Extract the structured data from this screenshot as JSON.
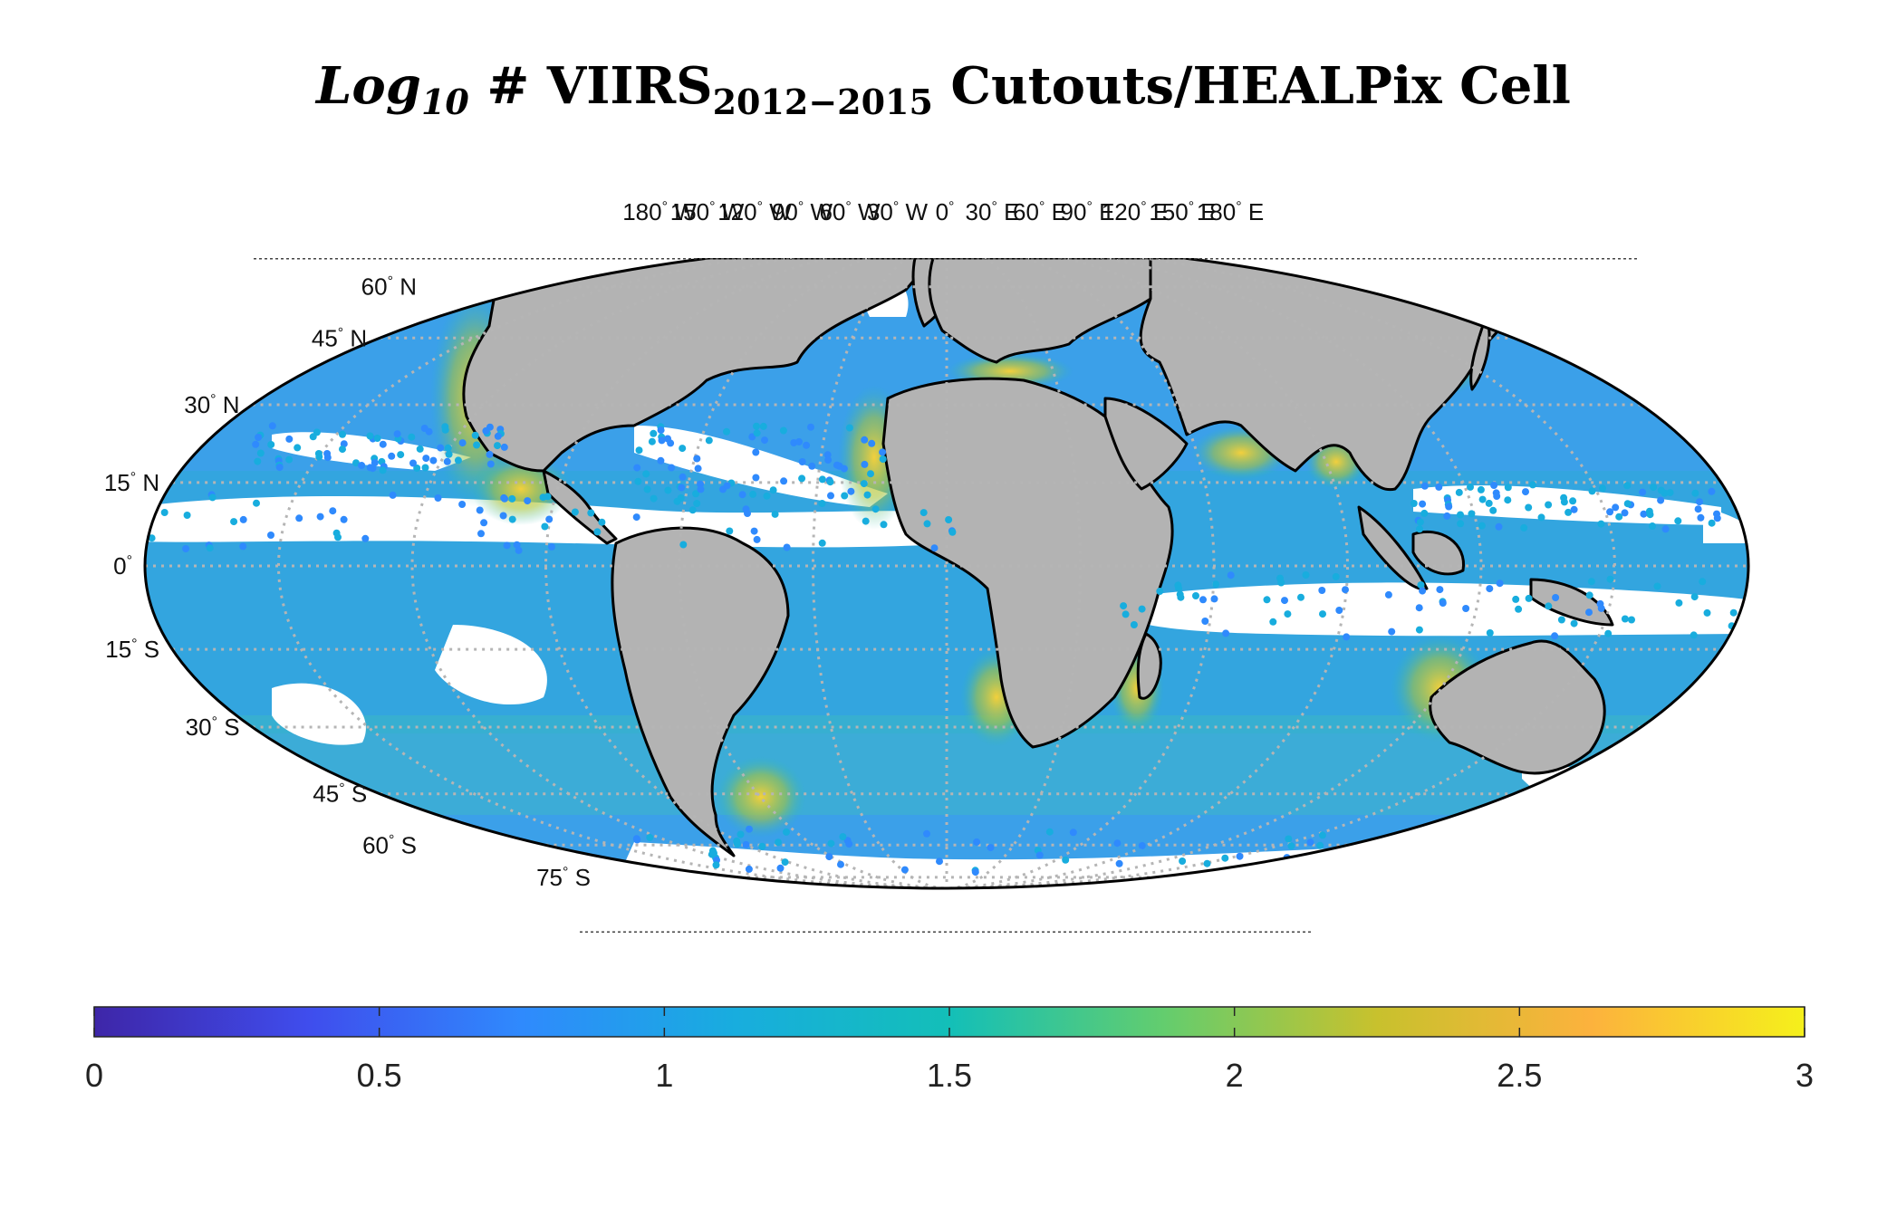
{
  "title": {
    "base": "Log",
    "log_sub": "10",
    "middle": " # VIIRS",
    "year_sub": "2012−2015",
    "suffix": " Cutouts/HEALPix Cell"
  },
  "map": {
    "projection": "Mollweide (ellipse)",
    "graticule": "dotted gray",
    "land_color": "#b3b3b3",
    "coastline_color": "#000000",
    "no_data_color": "#ffffff",
    "lon_labels": [
      {
        "v": -180,
        "text": "180",
        "suf": "W"
      },
      {
        "v": -150,
        "text": "150",
        "suf": "W"
      },
      {
        "v": -120,
        "text": "120",
        "suf": "W"
      },
      {
        "v": -90,
        "text": "90",
        "suf": "W"
      },
      {
        "v": -60,
        "text": "60",
        "suf": "W"
      },
      {
        "v": -30,
        "text": "30",
        "suf": "W"
      },
      {
        "v": 0,
        "text": "0",
        "suf": ""
      },
      {
        "v": 30,
        "text": "30",
        "suf": "E"
      },
      {
        "v": 60,
        "text": "60",
        "suf": "E"
      },
      {
        "v": 90,
        "text": "90",
        "suf": "E"
      },
      {
        "v": 120,
        "text": "120",
        "suf": "E"
      },
      {
        "v": 150,
        "text": "150",
        "suf": "E"
      },
      {
        "v": 180,
        "text": "180",
        "suf": "E"
      }
    ],
    "lat_labels": [
      {
        "v": 60,
        "text": "60",
        "suf": "N"
      },
      {
        "v": 45,
        "text": "45",
        "suf": "N"
      },
      {
        "v": 30,
        "text": "30",
        "suf": "N"
      },
      {
        "v": 15,
        "text": "15",
        "suf": "N"
      },
      {
        "v": 0,
        "text": "0",
        "suf": ""
      },
      {
        "v": -15,
        "text": "15",
        "suf": "S"
      },
      {
        "v": -30,
        "text": "30",
        "suf": "S"
      },
      {
        "v": -45,
        "text": "45",
        "suf": "S"
      },
      {
        "v": -60,
        "text": "60",
        "suf": "S"
      },
      {
        "v": -75,
        "text": "75",
        "suf": "S"
      }
    ],
    "degree_symbol": "°"
  },
  "colorbar": {
    "min": 0,
    "max": 3,
    "ticks": [
      "0",
      "0.5",
      "1",
      "1.5",
      "2",
      "2.5",
      "3"
    ],
    "colors": [
      "#3e26a8",
      "#3f4ded",
      "#2f8afd",
      "#18adde",
      "#13bfb8",
      "#63cd6e",
      "#c8c12d",
      "#fcb23d",
      "#f5f01b"
    ]
  }
}
